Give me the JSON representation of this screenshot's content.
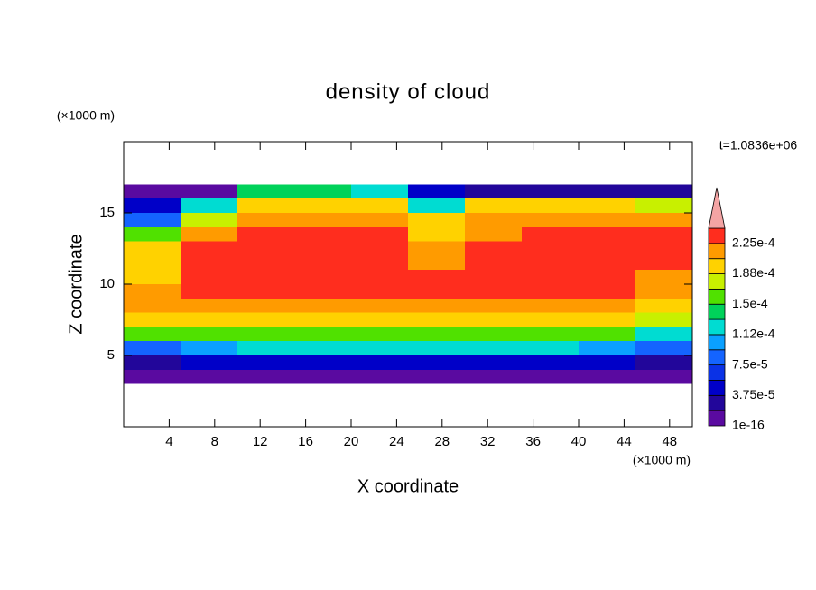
{
  "chart_data": {
    "type": "contour",
    "title": "density of cloud",
    "y_unit_label": "(×1000 m)",
    "x_unit_label": "(×1000 m)",
    "time_label": "t=1.0836e+06",
    "x_label": "X coordinate",
    "y_label": "Z coordinate",
    "xlim": [
      0,
      50
    ],
    "ylim": [
      0,
      20
    ],
    "xticks": [
      4,
      8,
      12,
      16,
      20,
      24,
      28,
      32,
      36,
      40,
      44,
      48
    ],
    "yticks": [
      5,
      10,
      15
    ],
    "x": [
      2.5,
      7.5,
      12.5,
      17.5,
      22.5,
      27.5,
      32.5,
      37.5,
      42.5,
      47.5
    ],
    "y": [
      3.5,
      4.5,
      5.5,
      6.5,
      7.5,
      8.5,
      9.5,
      10.5,
      11.5,
      12.5,
      13.5,
      14.5,
      15.5,
      16.5
    ],
    "z": [
      [
        1e-05,
        1e-05,
        1e-05,
        1e-05,
        1e-05,
        1e-05,
        1e-05,
        1e-05,
        1e-05,
        1e-05
      ],
      [
        3e-05,
        4e-05,
        4e-05,
        4e-05,
        4e-05,
        4e-05,
        4e-05,
        4e-05,
        4e-05,
        3e-05
      ],
      [
        9e-05,
        0.00011,
        0.00012,
        0.00012,
        0.00012,
        0.00012,
        0.00012,
        0.00012,
        0.00011,
        8e-05
      ],
      [
        0.00015,
        0.00016,
        0.00016,
        0.00016,
        0.00016,
        0.00016,
        0.00016,
        0.00016,
        0.00016,
        0.00013
      ],
      [
        0.00019,
        0.00019,
        0.00019,
        0.00019,
        0.00019,
        0.00019,
        0.00019,
        0.00019,
        0.0002,
        0.00017
      ],
      [
        0.00021,
        0.00021,
        0.00022,
        0.00022,
        0.00022,
        0.00022,
        0.00022,
        0.00022,
        0.00021,
        0.0002
      ],
      [
        0.00021,
        0.00023,
        0.00023,
        0.00023,
        0.00023,
        0.00023,
        0.00023,
        0.00023,
        0.00023,
        0.00022
      ],
      [
        0.0002,
        0.00023,
        0.00023,
        0.00023,
        0.00023,
        0.00023,
        0.00023,
        0.00023,
        0.00023,
        0.00022
      ],
      [
        0.0002,
        0.00023,
        0.00023,
        0.00023,
        0.00023,
        0.00022,
        0.00023,
        0.00023,
        0.00023,
        0.00023
      ],
      [
        0.00019,
        0.00023,
        0.00023,
        0.00023,
        0.00023,
        0.00021,
        0.00023,
        0.00023,
        0.00023,
        0.00023
      ],
      [
        0.00015,
        0.00021,
        0.00023,
        0.00023,
        0.00023,
        0.0002,
        0.00022,
        0.00023,
        0.00023,
        0.00023
      ],
      [
        8e-05,
        0.00017,
        0.00022,
        0.00022,
        0.00022,
        0.0002,
        0.00021,
        0.00021,
        0.00021,
        0.00021
      ],
      [
        5e-05,
        0.00012,
        0.0002,
        0.0002,
        0.0002,
        0.00013,
        0.00019,
        0.00019,
        0.00019,
        0.00018
      ],
      [
        1e-05,
        1e-05,
        0.00014,
        0.00014,
        0.00013,
        5e-05,
        3e-05,
        3e-05,
        3e-05,
        3e-05
      ]
    ],
    "levels": [
      1e-16,
      1.875e-05,
      3.75e-05,
      5.625e-05,
      7.5e-05,
      9.375e-05,
      0.0001125,
      0.00013125,
      0.00015,
      0.00016875,
      0.0001875,
      0.00020625,
      0.000225,
      0.00024375
    ],
    "level_colors": [
      "#5a0aa0",
      "#22069a",
      "#0000c8",
      "#0a32e6",
      "#1464ff",
      "#0aa0ff",
      "#00dcd2",
      "#00d25a",
      "#50e100",
      "#c8f000",
      "#ffd200",
      "#ff9b00",
      "#ff2d1e"
    ],
    "extend_color": "#f4a4a4",
    "colorbar_ticks": [
      1e-16,
      {
        "value": 3.75e-05,
        "label": "3.75e-5"
      },
      {
        "value": 7.5e-05,
        "label": "7.5e-5"
      },
      {
        "value": 0.0001125,
        "label": "1.12e-4"
      },
      {
        "value": 0.00015,
        "label": "1.5e-4"
      },
      {
        "value": 0.0001875,
        "label": "1.88e-4"
      },
      {
        "value": 0.000225,
        "label": "2.25e-4"
      }
    ]
  }
}
